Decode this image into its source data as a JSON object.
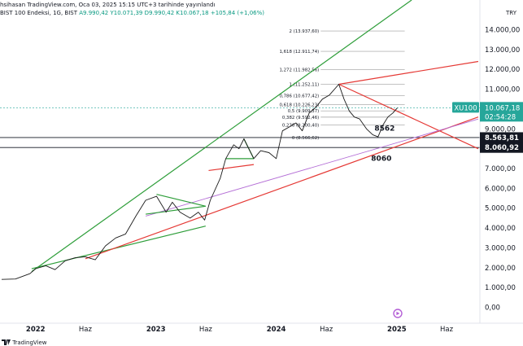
{
  "header": {
    "publish_line": "hsihasan TradingView.com, Oca 03, 2025 15:15 UTC+3 tarihinde yayınlandı",
    "symbol_line": "BIST 100 Endeksi, 1G, BIST",
    "open": "A9.990,42",
    "high": "Y10.071,39",
    "low": "D9.990,42",
    "close": "K10.067,18",
    "change": "+105,84 (+1,06%)",
    "currency": "TRY"
  },
  "footer": {
    "brand": "TradingView"
  },
  "colors": {
    "price_line": "#1a1a1a",
    "green_channel": "#2e9e3a",
    "red_support": "#e53935",
    "purple_trend": "#b46ed6",
    "price_tag": "#26a69a",
    "black_tag": "#131722",
    "fib_line": "#9e9e9e"
  },
  "chart_data": {
    "type": "line",
    "title": "",
    "symbol": "XU100",
    "y_axis": {
      "ticks": [
        "14.000,00",
        "13.000,00",
        "12.000,00",
        "11.000,00",
        "10.000,00",
        "9.000,00",
        "8.000,00",
        "7.000,00",
        "6.000,00",
        "5.000,00",
        "4.000,00",
        "3.000,00",
        "2.000,00",
        "1.000,00",
        "0,00"
      ],
      "range": [
        -800,
        15500
      ],
      "position": "right"
    },
    "x_axis": {
      "ticks": [
        "2022",
        "Haz",
        "2023",
        "Haz",
        "2024",
        "Haz",
        "2025",
        "Haz"
      ],
      "tick_dates": [
        "2022-01-01",
        "2022-06-01",
        "2023-01-01",
        "2023-06-01",
        "2024-01-01",
        "2024-06-01",
        "2025-01-01",
        "2025-06-01"
      ],
      "range": [
        "2021-09-15",
        "2025-09-10"
      ]
    },
    "series": [
      {
        "type": "line",
        "points": [
          [
            "2021-09-20",
            1410
          ],
          [
            "2021-11-01",
            1430
          ],
          [
            "2021-12-15",
            1700
          ],
          [
            "2022-01-01",
            1950
          ],
          [
            "2022-02-01",
            2100
          ],
          [
            "2022-03-01",
            1900
          ],
          [
            "2022-04-01",
            2350
          ],
          [
            "2022-05-01",
            2500
          ],
          [
            "2022-06-01",
            2550
          ],
          [
            "2022-07-01",
            2400
          ],
          [
            "2022-08-01",
            3100
          ],
          [
            "2022-09-01",
            3500
          ],
          [
            "2022-10-01",
            3700
          ],
          [
            "2022-11-01",
            4600
          ],
          [
            "2022-12-01",
            5400
          ],
          [
            "2023-01-03",
            5600
          ],
          [
            "2023-02-01",
            4800
          ],
          [
            "2023-02-20",
            5300
          ],
          [
            "2023-03-15",
            4800
          ],
          [
            "2023-04-15",
            4500
          ],
          [
            "2023-05-10",
            4800
          ],
          [
            "2023-05-29",
            4400
          ],
          [
            "2023-06-15",
            5400
          ],
          [
            "2023-07-15",
            6500
          ],
          [
            "2023-08-01",
            7500
          ],
          [
            "2023-08-25",
            8200
          ],
          [
            "2023-09-10",
            8000
          ],
          [
            "2023-09-25",
            8500
          ],
          [
            "2023-10-10",
            8000
          ],
          [
            "2023-10-25",
            7500
          ],
          [
            "2023-11-15",
            7900
          ],
          [
            "2023-12-10",
            7800
          ],
          [
            "2024-01-01",
            7500
          ],
          [
            "2024-01-20",
            8900
          ],
          [
            "2024-02-10",
            9100
          ],
          [
            "2024-03-01",
            9300
          ],
          [
            "2024-03-20",
            8900
          ],
          [
            "2024-04-10",
            9800
          ],
          [
            "2024-05-01",
            10100
          ],
          [
            "2024-05-20",
            10500
          ],
          [
            "2024-06-10",
            10700
          ],
          [
            "2024-07-09",
            11250
          ],
          [
            "2024-07-25",
            10500
          ],
          [
            "2024-08-10",
            9900
          ],
          [
            "2024-08-25",
            9600
          ],
          [
            "2024-09-10",
            9500
          ],
          [
            "2024-10-01",
            9000
          ],
          [
            "2024-10-20",
            8700
          ],
          [
            "2024-11-05",
            8600
          ],
          [
            "2024-11-20",
            9200
          ],
          [
            "2024-12-05",
            9600
          ],
          [
            "2024-12-20",
            9800
          ],
          [
            "2025-01-03",
            10067
          ]
        ]
      }
    ],
    "fib_levels": [
      {
        "label": "2 (13.937,60)",
        "value": 13937.6
      },
      {
        "label": "1,618 (12.911,74)",
        "value": 12911.74
      },
      {
        "label": "1,272 (11.982,56)",
        "value": 11982.56
      },
      {
        "label": "1 (11.252,11)",
        "value": 11252.11
      },
      {
        "label": "0,786 (10.677,42)",
        "value": 10677.42
      },
      {
        "label": "0,618 (10.226,23)",
        "value": 10226.23
      },
      {
        "label": "0,5 (9.909,37)",
        "value": 9909.37
      },
      {
        "label": "0,382 (9.592,46)",
        "value": 9592.46
      },
      {
        "label": "0,236 (9.200,40)",
        "value": 9200.4
      },
      {
        "label": "0 (8.566,62)",
        "value": 8566.62
      }
    ],
    "fib_range": [
      "2024-05-15",
      "2025-01-25"
    ],
    "horizontal_lines": [
      {
        "value": 8563.81,
        "label": "8.563,81"
      },
      {
        "value": 8060.92,
        "label": "8.060,92"
      }
    ],
    "price_tag": {
      "symbol": "XU100",
      "value": 10067.18,
      "label": "10.067,18",
      "countdown": "02:54:28"
    },
    "trendlines": [
      {
        "name": "green-channel-upper",
        "color": "green",
        "from": [
          "2021-12-20",
          1800
        ],
        "to": [
          "2025-02-15",
          15500
        ]
      },
      {
        "name": "green-channel-lower",
        "color": "green",
        "from": [
          "2021-12-20",
          1950
        ],
        "to": [
          "2023-06-01",
          4100
        ]
      },
      {
        "name": "red-rising-support",
        "color": "red",
        "from": [
          "2022-06-01",
          2450
        ],
        "to": [
          "2025-09-05",
          9600
        ]
      },
      {
        "name": "red-upper-resistance",
        "color": "red",
        "from": [
          "2024-07-09",
          11250
        ],
        "to": [
          "2025-09-05",
          12400
        ]
      },
      {
        "name": "red-falling-resistance",
        "color": "red",
        "from": [
          "2024-07-09",
          11250
        ],
        "to": [
          "2025-09-05",
          8000
        ]
      },
      {
        "name": "red-2023-base",
        "color": "red",
        "from": [
          "2023-06-10",
          6900
        ],
        "to": [
          "2023-10-25",
          7200
        ]
      },
      {
        "name": "purple-trend",
        "color": "purple",
        "from": [
          "2022-12-01",
          4600
        ],
        "to": [
          "2025-09-05",
          9500
        ]
      },
      {
        "name": "green-triangle-2023-a",
        "color": "green",
        "from": [
          "2022-12-01",
          4700
        ],
        "to": [
          "2023-06-01",
          5100
        ]
      },
      {
        "name": "green-triangle-2023-b",
        "color": "green",
        "from": [
          "2023-01-03",
          5700
        ],
        "to": [
          "2023-06-01",
          5100
        ]
      },
      {
        "name": "green-triangle-2024-a",
        "color": "green",
        "from": [
          "2023-08-01",
          7500
        ],
        "to": [
          "2023-10-25",
          7500
        ]
      },
      {
        "name": "green-triangle-2024-b",
        "color": "green",
        "from": [
          "2023-09-25",
          8500
        ],
        "to": [
          "2023-10-25",
          7500
        ]
      }
    ],
    "annotations": [
      {
        "text": "8562",
        "x": "2024-11-25",
        "y": 8900
      },
      {
        "text": "8060",
        "x": "2024-11-15",
        "y": 7400
      }
    ],
    "grid": false,
    "legend": "none"
  }
}
